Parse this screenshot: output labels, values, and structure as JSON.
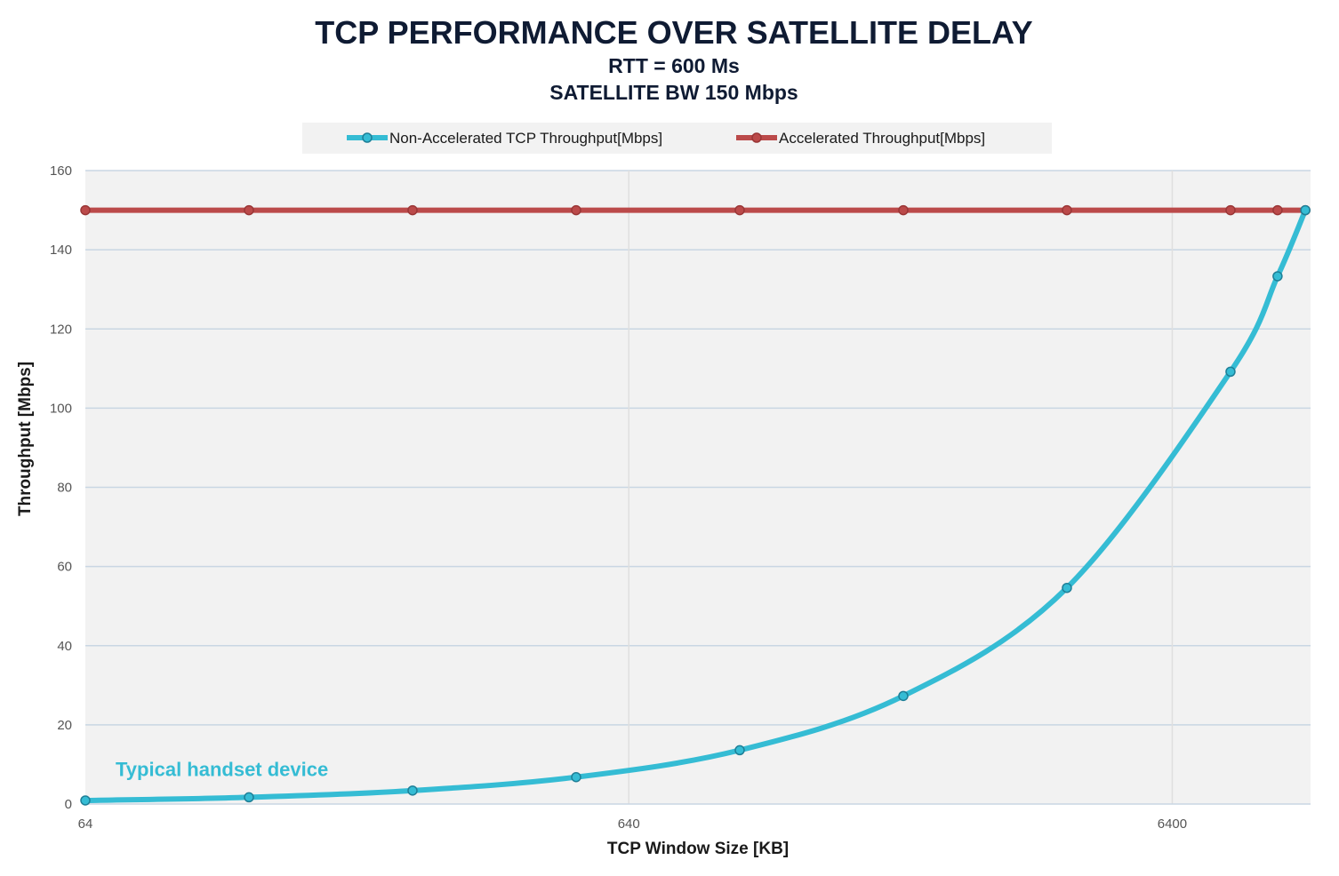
{
  "chart_data": {
    "type": "line",
    "title": "TCP PERFORMANCE OVER SATELLITE DELAY",
    "subtitle_lines": [
      "RTT = 600 Ms",
      "SATELLITE BW 150 Mbps"
    ],
    "xlabel": "TCP Window Size [KB]",
    "ylabel": "Throughput [Mbps]",
    "x_scale": "log",
    "x_ticks": [
      64,
      640,
      6400
    ],
    "x_tick_labels": [
      "64",
      "640",
      "6400"
    ],
    "xlim": [
      64,
      11500
    ],
    "ylim": [
      0,
      160
    ],
    "y_ticks": [
      0,
      20,
      40,
      60,
      80,
      100,
      120,
      140,
      160
    ],
    "y_tick_labels": [
      "0",
      "20",
      "40",
      "60",
      "80",
      "100",
      "120",
      "140",
      "160"
    ],
    "grid": true,
    "legend_position": "top-center",
    "x": [
      64,
      128,
      256,
      512,
      1024,
      2048,
      4096,
      8192,
      10000,
      11250
    ],
    "series": [
      {
        "name": "Non-Accelerated TCP Throughput[Mbps]",
        "color": "#35bcd4",
        "values": [
          0.9,
          1.7,
          3.4,
          6.8,
          13.6,
          27.3,
          54.6,
          109.2,
          133.3,
          150
        ]
      },
      {
        "name": "Accelerated Throughput[Mbps]",
        "color": "#bb4a4a",
        "values": [
          150,
          150,
          150,
          150,
          150,
          150,
          150,
          150,
          150,
          150
        ]
      }
    ],
    "annotations": [
      {
        "text": "Typical handset device",
        "x": 64,
        "y": 10,
        "color": "#35bcd4"
      }
    ]
  }
}
